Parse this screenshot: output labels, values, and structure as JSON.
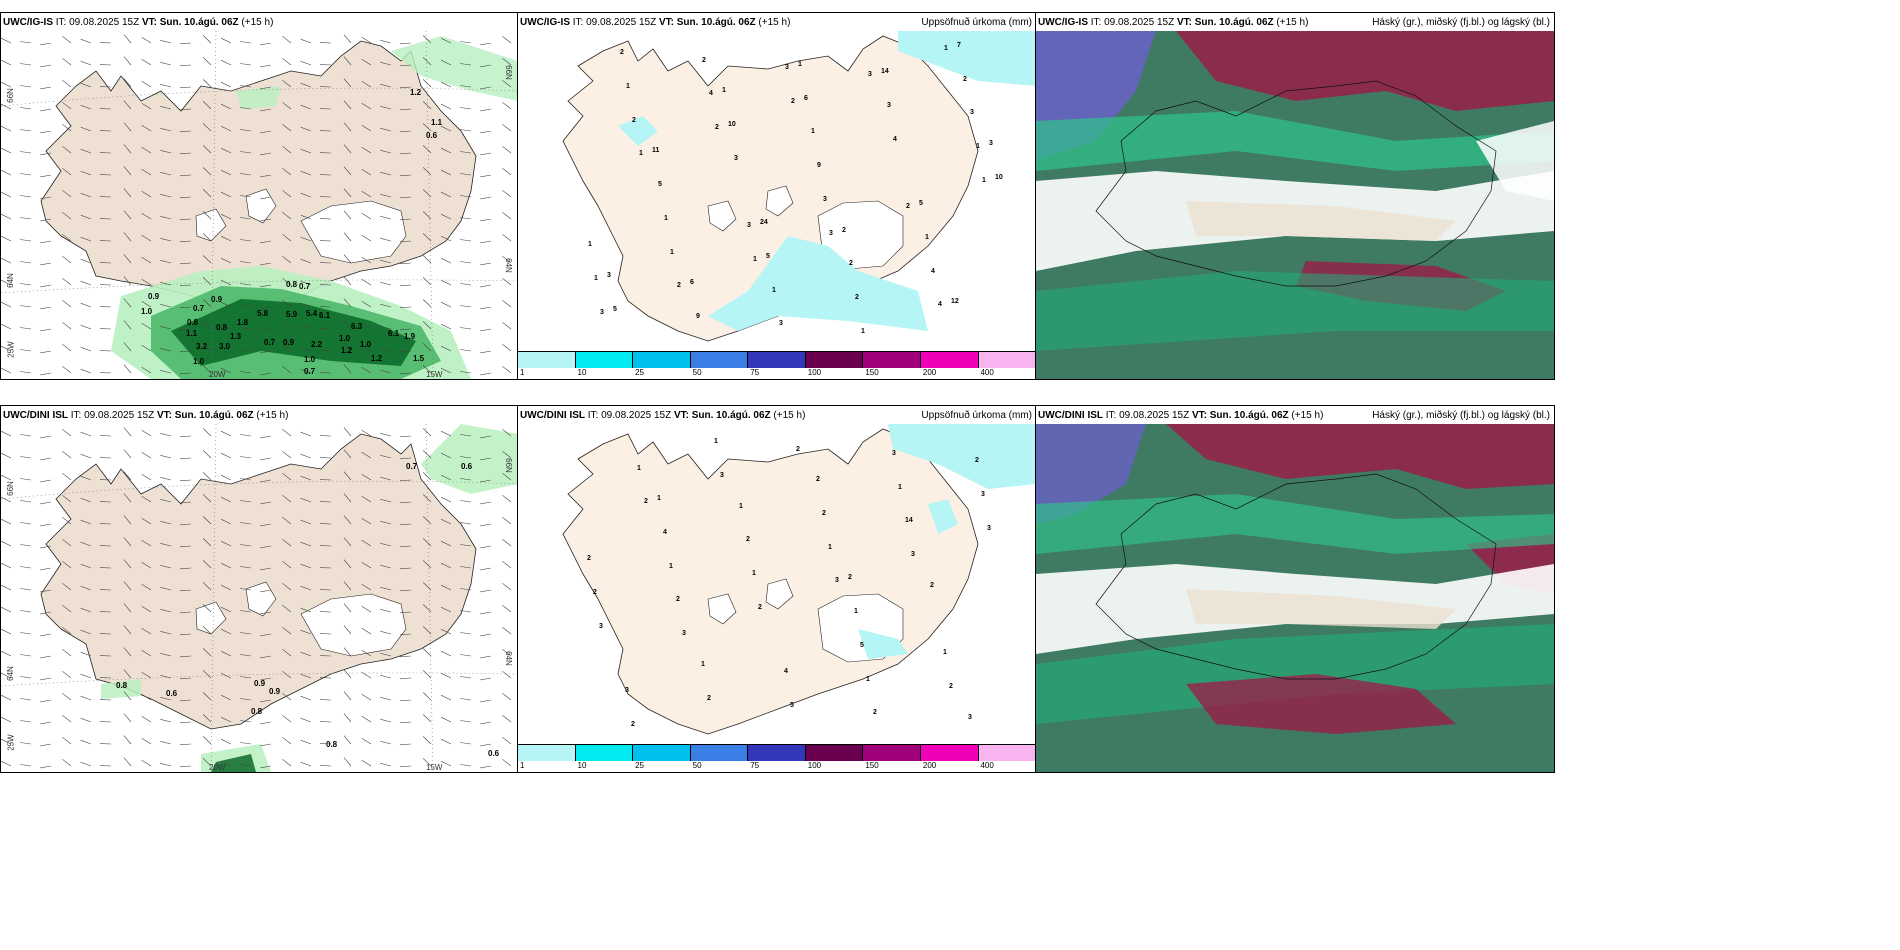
{
  "rows": [
    {
      "model": "UWC/IG-IS",
      "it": " IT: 09.08.2025 15Z ",
      "vt": "VT: Sun. 10.ágú. 06Z",
      "lead": " (+15 h)"
    },
    {
      "model": "UWC/DINI ISL",
      "it": " IT: 09.08.2025 15Z ",
      "vt": "VT: Sun. 10.ágú. 06Z",
      "lead": " (+15 h)"
    }
  ],
  "panels": {
    "precip_title": "Uppsöfnuð úrkoma (mm)",
    "cloud_title": "Háský (gr.), miðský (fj.bl.) og lágský (bl.)"
  },
  "axes": {
    "lat66": "66N",
    "lat64": "64N",
    "lon25": "25W",
    "lon20": "20W",
    "lon15": "15W"
  },
  "colorbar": {
    "ticks": [
      "1",
      "10",
      "25",
      "50",
      "75",
      "100",
      "150",
      "200",
      "400"
    ],
    "colors": [
      "#b5f5f5",
      "#00eaf0",
      "#00c0ef",
      "#3a7fe6",
      "#3238b8",
      "#6a0050",
      "#a0007a",
      "#f000b8",
      "#f7b4f0"
    ]
  },
  "colors": {
    "land": "#eee0d2",
    "land_precip": "#fcefe3",
    "glacier": "#ffffff",
    "rain_light": "#b8f0c0",
    "rain_mid": "#4db86a",
    "rain_dark": "#0d6b2a",
    "precip_cyan": "#b5f5f5"
  },
  "wind_values": {
    "top": [
      "1.2",
      "1.1",
      "0.6",
      "0.8",
      "0.7",
      "0.9",
      "1.0",
      "0.7",
      "0.9",
      "5.8",
      "5.9",
      "5.4",
      "6.1",
      "6.3",
      "6.1",
      "1.9",
      "0.7",
      "0.9",
      "1.0",
      "1.0",
      "2.2",
      "1.2",
      "1.0",
      "1.2",
      "1.5",
      "0.7",
      "1.0",
      "3.2",
      "3.0",
      "1.3",
      "1.1",
      "0.8",
      "1.8",
      "0.8"
    ],
    "bottom": [
      "0.7",
      "0.6",
      "0.8",
      "0.6",
      "0.9",
      "0.9",
      "0.8",
      "0.8",
      "0.6"
    ]
  },
  "precip_values": {
    "top": [
      "1",
      "3",
      "2",
      "2",
      "2",
      "1",
      "1",
      "1",
      "2",
      "3",
      "3",
      "4",
      "4",
      "3",
      "1",
      "3",
      "1",
      "3",
      "2",
      "1",
      "1",
      "3",
      "3",
      "1",
      "9",
      "1",
      "2",
      "1",
      "4",
      "2",
      "4",
      "1",
      "2",
      "2",
      "5",
      "3",
      "9",
      "1",
      "3",
      "2",
      "1",
      "11",
      "14",
      "6",
      "5",
      "10",
      "7",
      "5",
      "10",
      "6",
      "5",
      "2",
      "1",
      "12",
      "24",
      "3",
      "1",
      "3"
    ],
    "bottom": [
      "3",
      "2",
      "2",
      "3",
      "3",
      "3",
      "2",
      "2",
      "3",
      "2",
      "2",
      "14",
      "1",
      "1",
      "1",
      "3",
      "5",
      "3",
      "1",
      "1",
      "1",
      "2",
      "2",
      "4",
      "2",
      "2",
      "2",
      "5",
      "1",
      "1",
      "2",
      "2",
      "2",
      "3",
      "1",
      "4",
      "3",
      "1",
      "2",
      "1",
      "3",
      "2",
      "1"
    ]
  }
}
